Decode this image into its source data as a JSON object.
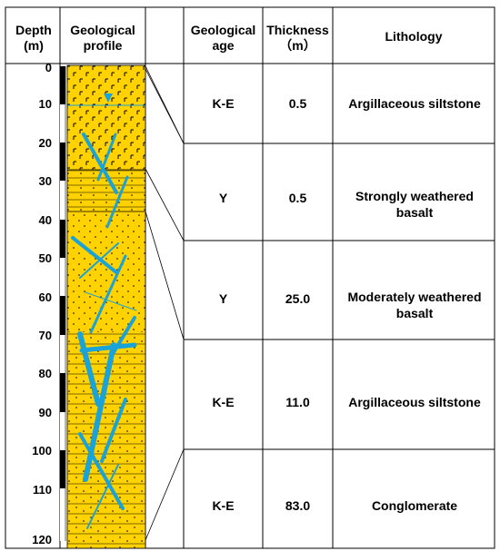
{
  "headers": {
    "depth": "Depth\n(m)",
    "profile": "Geological\nprofile",
    "age": "Geological\nage",
    "thickness": "Thickness\n（m）",
    "lithology": "Lithology"
  },
  "depth_ticks": [
    "0",
    "10",
    "20",
    "30",
    "40",
    "50",
    "60",
    "70",
    "80",
    "90",
    "100",
    "110",
    "120"
  ],
  "rows": [
    {
      "age": "K-E",
      "thickness": "0.5",
      "lithology": "Argillaceous siltstone"
    },
    {
      "age": "Y",
      "thickness": "0.5",
      "lithology": "Strongly weathered basalt"
    },
    {
      "age": "Y",
      "thickness": "25.0",
      "lithology": "Moderately weathered basalt"
    },
    {
      "age": "K-E",
      "thickness": "11.0",
      "lithology": "Argillaceous siltstone"
    },
    {
      "age": "K-E",
      "thickness": "83.0",
      "lithology": "Conglomerate"
    }
  ],
  "colors": {
    "rock_fill": "#FFD200",
    "fracture": "#1AA3D8",
    "grid": "#000000",
    "scale_bar": "#000000"
  }
}
